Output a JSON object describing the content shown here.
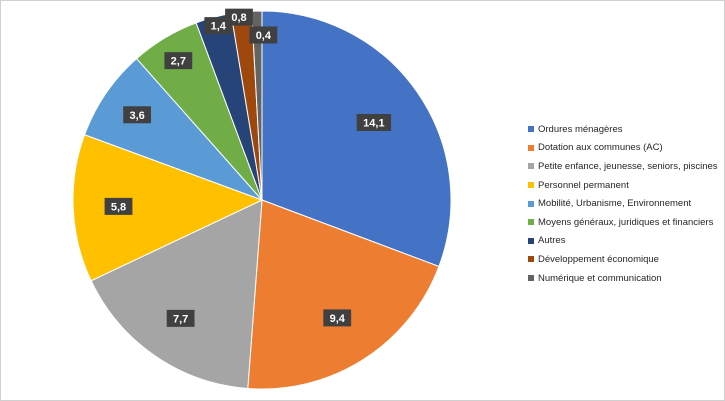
{
  "chart_data": {
    "type": "pie",
    "title": "",
    "start_angle_deg": 0,
    "direction": "clockwise",
    "legend_position": "right",
    "label_format": "comma-decimal",
    "slices": [
      {
        "label": "Ordures ménagères",
        "value": 14.1,
        "color": "#4472C4"
      },
      {
        "label": "Dotation aux communes (AC)",
        "value": 9.4,
        "color": "#ED7D31"
      },
      {
        "label": "Petite enfance, jeunesse, seniors, piscines",
        "value": 7.7,
        "color": "#A5A5A5"
      },
      {
        "label": "Personnel permanent",
        "value": 5.8,
        "color": "#FFC000"
      },
      {
        "label": "Mobilité, Urbanisme, Environnement",
        "value": 3.6,
        "color": "#5B9BD5"
      },
      {
        "label": "Moyens généraux, juridiques et financiers",
        "value": 2.7,
        "color": "#70AD47"
      },
      {
        "label": "Autres",
        "value": 1.4,
        "color": "#264478"
      },
      {
        "label": "Développement économique",
        "value": 0.8,
        "color": "#9E480E"
      },
      {
        "label": "Numérique et communication",
        "value": 0.4,
        "color": "#636363"
      }
    ]
  }
}
